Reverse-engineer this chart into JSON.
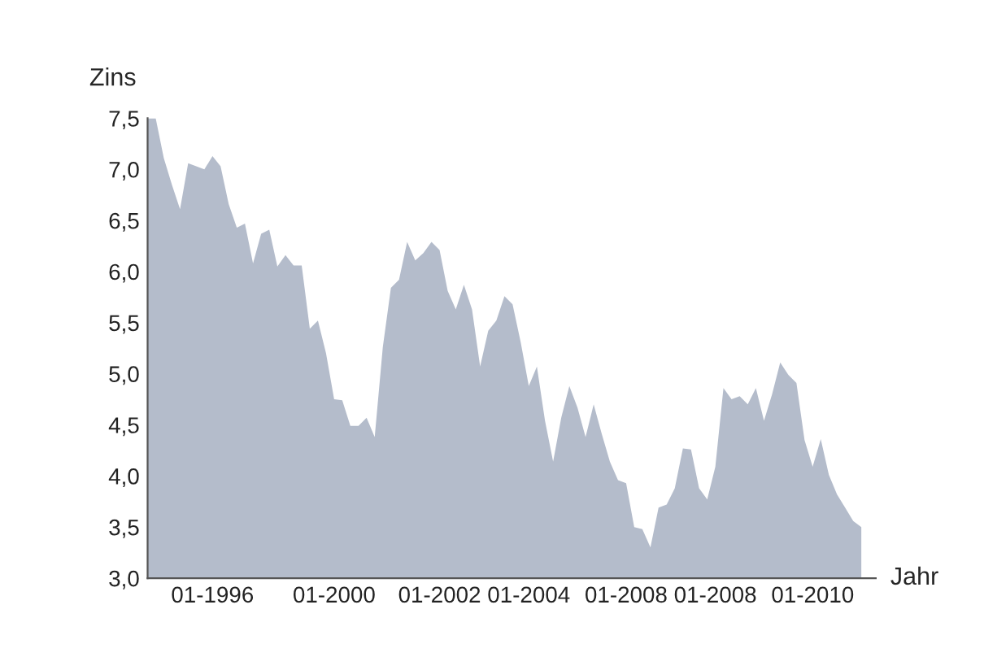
{
  "chart_data": {
    "type": "area",
    "ylabel": "Zins",
    "xlabel": "Jahr",
    "categories": [
      null,
      null,
      null,
      null,
      null,
      null,
      null,
      null,
      "01-1996",
      null,
      null,
      null,
      null,
      null,
      null,
      null,
      null,
      null,
      null,
      null,
      null,
      null,
      null,
      "01-2000",
      null,
      null,
      null,
      null,
      null,
      null,
      null,
      null,
      null,
      null,
      null,
      null,
      "01-2002",
      null,
      null,
      null,
      null,
      null,
      null,
      null,
      null,
      null,
      null,
      "01-2004",
      null,
      null,
      null,
      null,
      null,
      null,
      null,
      null,
      null,
      null,
      null,
      "01-2008",
      null,
      null,
      null,
      null,
      null,
      null,
      null,
      null,
      null,
      null,
      "01-2008",
      null,
      null,
      null,
      null,
      null,
      null,
      null,
      null,
      null,
      null,
      null,
      "01-2010",
      null,
      null,
      null,
      null,
      null,
      null
    ],
    "series": [
      {
        "color": "#b4bccb",
        "values": [
          7.5,
          7.5,
          7.11,
          6.85,
          6.61,
          7.06,
          7.03,
          7.0,
          7.13,
          7.03,
          6.66,
          6.43,
          6.47,
          6.08,
          6.37,
          6.41,
          6.05,
          6.16,
          6.06,
          6.06,
          5.44,
          5.52,
          5.2,
          4.75,
          4.74,
          4.49,
          4.49,
          4.57,
          4.38,
          5.26,
          5.84,
          5.92,
          6.29,
          6.11,
          6.18,
          6.29,
          6.21,
          5.81,
          5.63,
          5.87,
          5.63,
          5.07,
          5.42,
          5.52,
          5.76,
          5.68,
          5.31,
          4.88,
          5.07,
          4.54,
          4.14,
          4.57,
          4.88,
          4.67,
          4.38,
          4.7,
          4.41,
          4.14,
          3.96,
          3.93,
          3.5,
          3.48,
          3.3,
          3.69,
          3.72,
          3.88,
          4.27,
          4.26,
          3.88,
          3.77,
          4.09,
          4.86,
          4.75,
          4.78,
          4.7,
          4.86,
          4.54,
          4.8,
          5.11,
          4.99,
          4.91,
          4.35,
          4.09,
          4.36,
          4.01,
          3.82,
          3.69,
          3.56,
          3.5
        ]
      }
    ],
    "ylim": [
      3.0,
      7.5
    ],
    "yticks": [
      {
        "value": 3.0,
        "label": "3,0"
      },
      {
        "value": 3.5,
        "label": "3,5"
      },
      {
        "value": 4.0,
        "label": "4,0"
      },
      {
        "value": 4.5,
        "label": "4,5"
      },
      {
        "value": 5.0,
        "label": "5,0"
      },
      {
        "value": 5.5,
        "label": "5,5"
      },
      {
        "value": 6.0,
        "label": "6,0"
      },
      {
        "value": 6.5,
        "label": "6,5"
      },
      {
        "value": 7.0,
        "label": "7,0"
      },
      {
        "value": 7.5,
        "label": "7,5"
      }
    ],
    "grid": false
  }
}
